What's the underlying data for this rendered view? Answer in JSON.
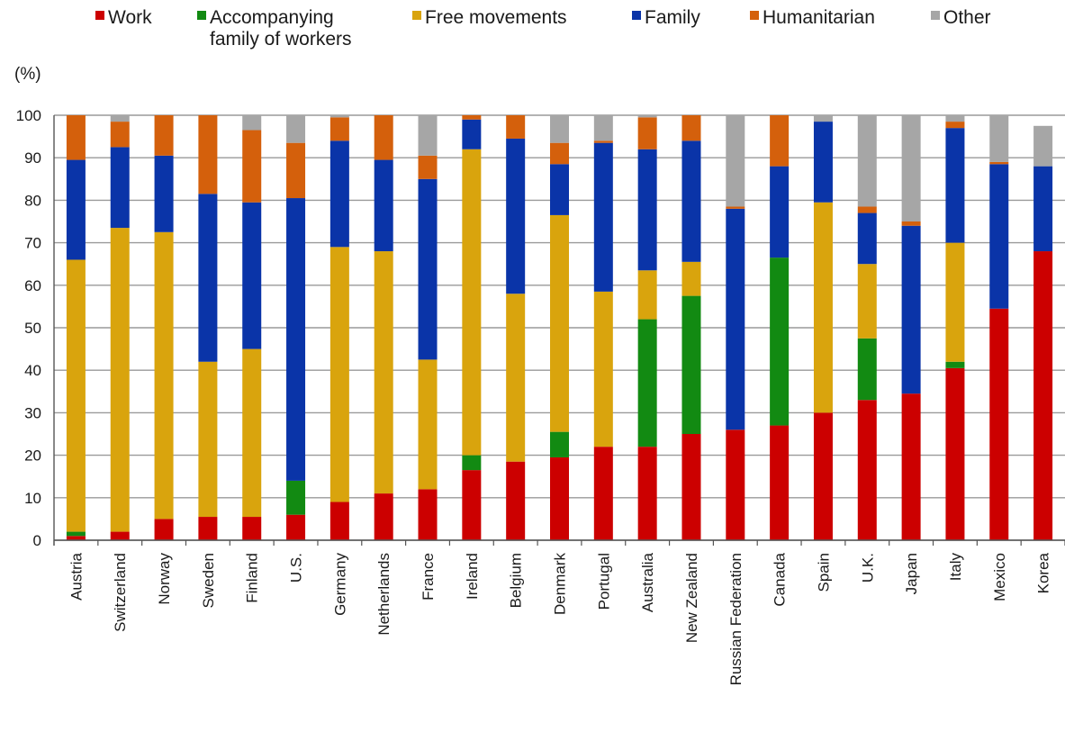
{
  "chart_data": {
    "type": "bar",
    "stacked": true,
    "unit_label": "(%)",
    "ylim": [
      0,
      100
    ],
    "yticks": [
      0,
      10,
      20,
      30,
      40,
      50,
      60,
      70,
      80,
      90,
      100
    ],
    "grid": true,
    "legend_position": "top",
    "categories": [
      "Austria",
      "Switzerland",
      "Norway",
      "Sweden",
      "Finland",
      "U.S.",
      "Germany",
      "Netherlands",
      "France",
      "Ireland",
      "Belgium",
      "Denmark",
      "Portugal",
      "Australia",
      "New Zealand",
      "Russian Federation",
      "Canada",
      "Spain",
      "U.K.",
      "Japan",
      "Italy",
      "Mexico",
      "Korea"
    ],
    "series": [
      {
        "name": "Work",
        "color": "#cc0000",
        "values": [
          1,
          2,
          5,
          5.5,
          5.5,
          6,
          9,
          11,
          12,
          16.5,
          18.5,
          19.5,
          22,
          22,
          25,
          26,
          27,
          30,
          33,
          34.5,
          40.5,
          54.5,
          68
        ]
      },
      {
        "name": "Accompanying family of workers",
        "color": "#128a12",
        "values": [
          1,
          0,
          0,
          0,
          0,
          8,
          0,
          0,
          0,
          3.5,
          0,
          6,
          0,
          30,
          32.5,
          0,
          39.5,
          0,
          14.5,
          0,
          1.5,
          0,
          0
        ]
      },
      {
        "name": "Free movements",
        "color": "#d9a40d",
        "values": [
          64,
          71.5,
          67.5,
          36.5,
          39.5,
          0,
          60,
          57,
          30.5,
          72,
          39.5,
          51,
          36.5,
          11.5,
          8,
          0,
          0,
          49.5,
          17.5,
          0,
          28,
          0,
          0
        ]
      },
      {
        "name": "Family",
        "color": "#0a34a8",
        "values": [
          23.5,
          19,
          18,
          39.5,
          34.5,
          66.5,
          25,
          21.5,
          42.5,
          7,
          36.5,
          12,
          35,
          28.5,
          28.5,
          52,
          21.5,
          19,
          12,
          39.5,
          27,
          34,
          20
        ]
      },
      {
        "name": "Humanitarian",
        "color": "#d4600c",
        "values": [
          10.5,
          6,
          9.5,
          18.5,
          17,
          13,
          5.5,
          10.5,
          5.5,
          1,
          5.5,
          5,
          0.5,
          7.5,
          6,
          0.5,
          12,
          0,
          1.5,
          1,
          1.5,
          0.5,
          0
        ]
      },
      {
        "name": "Other",
        "color": "#a6a6a6",
        "values": [
          0,
          1.5,
          0,
          0,
          3.5,
          6.5,
          0.5,
          0,
          9.5,
          0,
          0,
          6.5,
          6,
          0.5,
          0,
          21.5,
          0,
          1.5,
          21.5,
          25,
          1.5,
          11,
          9.5
        ]
      }
    ],
    "legend": [
      {
        "lines": [
          "Work"
        ],
        "color": "#cc0000"
      },
      {
        "lines": [
          "Accompanying",
          "family of workers"
        ],
        "color": "#128a12"
      },
      {
        "lines": [
          "Free movements"
        ],
        "color": "#d9a40d"
      },
      {
        "lines": [
          "Family"
        ],
        "color": "#0a34a8"
      },
      {
        "lines": [
          "Humanitarian"
        ],
        "color": "#d4600c"
      },
      {
        "lines": [
          "Other"
        ],
        "color": "#a6a6a6"
      }
    ]
  }
}
